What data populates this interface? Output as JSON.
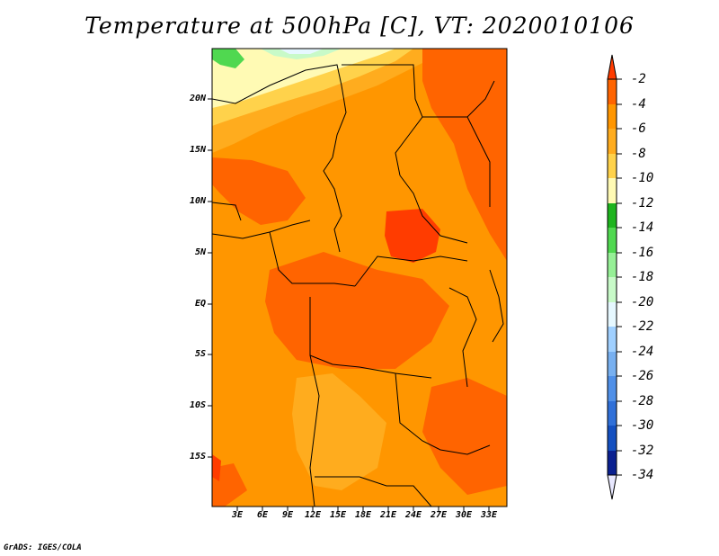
{
  "title": "Temperature at 500hPa [C], VT: 2020010106",
  "footer": "GrADS: IGES/COLA",
  "map": {
    "lat_labels": [
      "20N",
      "15N",
      "10N",
      "5N",
      "EQ",
      "5S",
      "10S",
      "15S"
    ],
    "lon_labels": [
      "3E",
      "6E",
      "9E",
      "12E",
      "15E",
      "18E",
      "21E",
      "24E",
      "27E",
      "30E",
      "33E"
    ]
  },
  "colorbar": {
    "labels": [
      "-2",
      "-4",
      "-6",
      "-8",
      "-10",
      "-12",
      "-14",
      "-16",
      "-18",
      "-20",
      "-22",
      "-24",
      "-26",
      "-28",
      "-30",
      "-32",
      "-34"
    ],
    "colors": [
      "#ff3c00",
      "#ff6400",
      "#ff9600",
      "#ffac1e",
      "#ffd24b",
      "#fffab4",
      "#1eb41e",
      "#50d850",
      "#96f096",
      "#c8fac8",
      "#e6f8ff",
      "#a0d0ff",
      "#78b0f0",
      "#5090e8",
      "#3070d8",
      "#1450c0",
      "#0a2090",
      "#101070",
      "#e8e8ff"
    ]
  }
}
